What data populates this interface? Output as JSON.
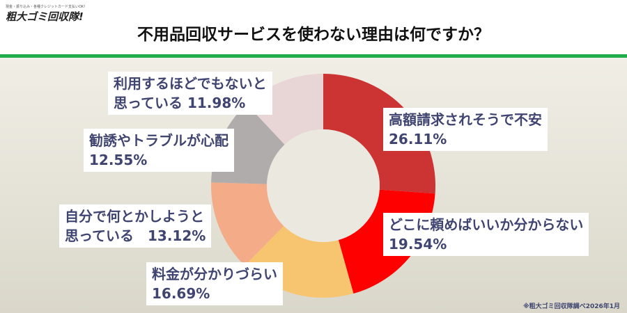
{
  "logo": {
    "tagline": "現金・振り込み・各種クレジットカード支払いOK!",
    "name": "粗大ゴミ回収隊!"
  },
  "title": "不用品回収サービスを使わない理由は何ですか？",
  "note": "※粗大ゴミ回収隊調べ2026年1月",
  "chart_data": {
    "type": "pie",
    "donut": true,
    "categories": [
      "高額請求されそうで不安",
      "どこに頼めばいいか分からない",
      "料金が分かりづらい",
      "自分で何とかしようと思っている",
      "勧誘やトラブルが心配",
      "利用するほどでもないと思っている"
    ],
    "values": [
      26.11,
      19.54,
      16.69,
      13.12,
      12.55,
      11.98
    ],
    "labels": [
      "26.11%",
      "19.54%",
      "16.69%",
      "13.12%",
      "12.55%",
      "11.98%"
    ],
    "colors": [
      "#cc3333",
      "#ff0000",
      "#f7c56f",
      "#f4ab88",
      "#b0acab",
      "#e8d6d7"
    ]
  }
}
